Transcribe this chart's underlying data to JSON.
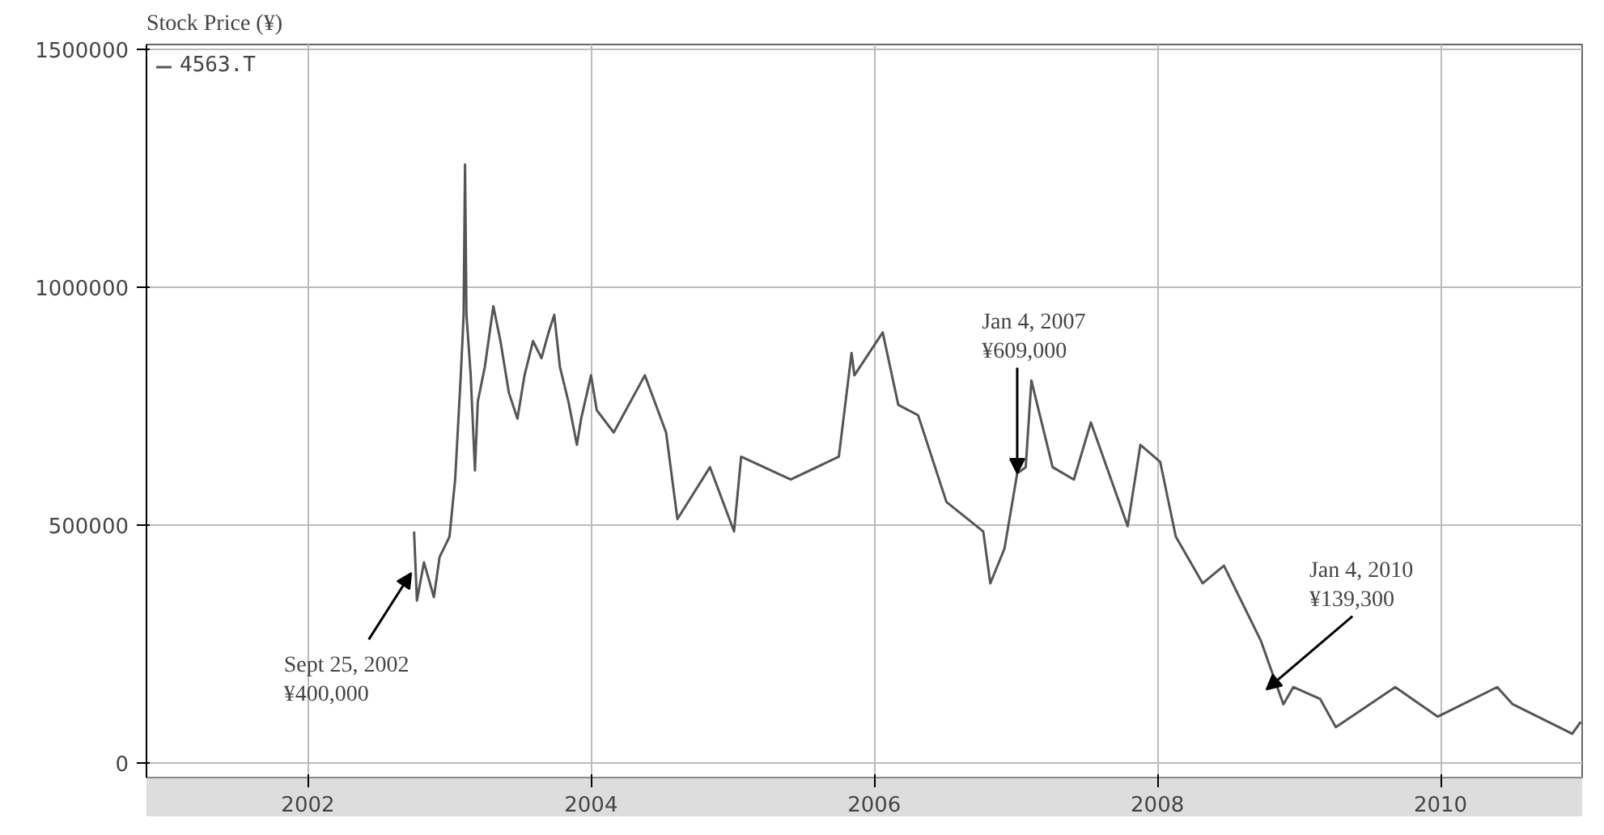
{
  "chart_data": {
    "type": "line",
    "title": "Stock Price (¥)",
    "x": [
      2002.75,
      2002.77,
      2002.82,
      2002.89,
      2002.93,
      2003.0,
      2003.04,
      2003.08,
      2003.1,
      2003.11,
      2003.12,
      2003.15,
      2003.18,
      2003.2,
      2003.25,
      2003.31,
      2003.36,
      2003.42,
      2003.48,
      2003.53,
      2003.59,
      2003.65,
      2003.7,
      2003.74,
      2003.78,
      2003.84,
      2003.9,
      2003.93,
      2004.0,
      2004.04,
      2004.16,
      2004.38,
      2004.53,
      2004.61,
      2004.84,
      2005.01,
      2005.06,
      2005.41,
      2005.75,
      2005.84,
      2005.86,
      2006.06,
      2006.17,
      2006.31,
      2006.51,
      2006.77,
      2006.82,
      2006.92,
      2007.01,
      2007.07,
      2007.11,
      2007.26,
      2007.41,
      2007.53,
      2007.79,
      2007.88,
      2008.02,
      2008.13,
      2008.32,
      2008.47,
      2008.73,
      2008.89,
      2008.96,
      2009.15,
      2009.26,
      2009.68,
      2009.98,
      2010.4,
      2010.51,
      2010.93,
      2010.99
    ],
    "series": [
      {
        "name": "4563.T",
        "color": "#555555",
        "values": [
          487000,
          342000,
          422000,
          349000,
          433000,
          476000,
          596000,
          815000,
          942000,
          1258000,
          942000,
          815000,
          615000,
          760000,
          833000,
          960000,
          887000,
          778000,
          724000,
          815000,
          887000,
          851000,
          905000,
          942000,
          833000,
          760000,
          669000,
          724000,
          815000,
          742000,
          695000,
          815000,
          695000,
          513000,
          622000,
          487000,
          644000,
          596000,
          644000,
          862000,
          815000,
          905000,
          753000,
          731000,
          549000,
          487000,
          378000,
          451000,
          609000,
          622000,
          804000,
          622000,
          596000,
          716000,
          498000,
          669000,
          633000,
          476000,
          378000,
          415000,
          258000,
          124000,
          160000,
          135000,
          76000,
          160000,
          98000,
          160000,
          124000,
          62000,
          87000
        ]
      }
    ],
    "xlim": [
      2000.86,
      2011.0
    ],
    "ylim": [
      -30000,
      1510000
    ],
    "xticks": [
      2002,
      2004,
      2006,
      2008,
      2010
    ],
    "yticks": [
      0,
      500000,
      1000000,
      1500000
    ],
    "grid": true,
    "legend": "top left",
    "annotations": [
      {
        "text": "Sept 25, 2002\n¥400,000",
        "x": 2002.73,
        "y": 400000
      },
      {
        "text": "Jan 4, 2007\n¥609,000",
        "x": 2007.01,
        "y": 609000
      },
      "Jan 4, 2010\n¥139,300"
    ]
  }
}
